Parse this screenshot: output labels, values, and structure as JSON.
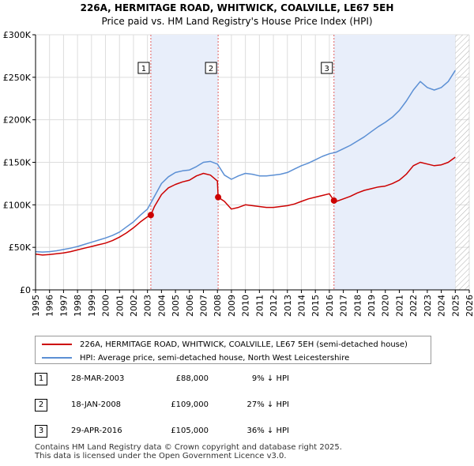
{
  "chart_data": {
    "type": "line",
    "title": "226A, HERMITAGE ROAD, WHITWICK, COALVILLE, LE67 5EH",
    "subtitle": "Price paid vs. HM Land Registry's House Price Index (HPI)",
    "xlabel": "",
    "ylabel": "",
    "xlim": [
      1995.0,
      2026.0
    ],
    "ylim": [
      0,
      300000
    ],
    "y_ticks": [
      0,
      50000,
      100000,
      150000,
      200000,
      250000,
      300000
    ],
    "y_tick_labels": [
      "£0",
      "£50K",
      "£100K",
      "£150K",
      "£200K",
      "£250K",
      "£300K"
    ],
    "x_ticks": [
      1995,
      1996,
      1997,
      1998,
      1999,
      2000,
      2001,
      2002,
      2003,
      2004,
      2005,
      2006,
      2007,
      2008,
      2009,
      2010,
      2011,
      2012,
      2013,
      2014,
      2015,
      2016,
      2017,
      2018,
      2019,
      2020,
      2021,
      2022,
      2023,
      2024,
      2025,
      2026
    ],
    "x_tick_labels": [
      "1995",
      "1996",
      "1997",
      "1998",
      "1999",
      "2000",
      "2001",
      "2002",
      "2003",
      "2004",
      "2005",
      "2006",
      "2007",
      "2008",
      "2009",
      "2010",
      "2011",
      "2012",
      "2013",
      "2014",
      "2015",
      "2016",
      "2017",
      "2018",
      "2019",
      "2020",
      "2021",
      "2022",
      "2023",
      "2024",
      "2025",
      "2026"
    ],
    "grid": true,
    "shaded_periods": [
      [
        2003.24,
        2008.05
      ],
      [
        2016.33,
        2025.0
      ]
    ],
    "hatched_after": 2025.0,
    "series": [
      {
        "name": "226A, HERMITAGE ROAD, WHITWICK, COALVILLE, LE67 5EH (semi-detached house)",
        "color": "#cc0000",
        "x": [
          1995.0,
          1995.5,
          1996.0,
          1996.5,
          1997.0,
          1997.5,
          1998.0,
          1998.5,
          1999.0,
          1999.5,
          2000.0,
          2000.5,
          2001.0,
          2001.5,
          2002.0,
          2002.5,
          2003.0,
          2003.24,
          2003.5,
          2004.0,
          2004.5,
          2005.0,
          2005.5,
          2006.0,
          2006.5,
          2007.0,
          2007.5,
          2008.0,
          2008.05,
          2008.5,
          2009.0,
          2009.5,
          2010.0,
          2010.5,
          2011.0,
          2011.5,
          2012.0,
          2012.5,
          2013.0,
          2013.5,
          2014.0,
          2014.5,
          2015.0,
          2015.5,
          2016.0,
          2016.33,
          2016.5,
          2017.0,
          2017.5,
          2018.0,
          2018.5,
          2019.0,
          2019.5,
          2020.0,
          2020.5,
          2021.0,
          2021.5,
          2022.0,
          2022.5,
          2023.0,
          2023.5,
          2024.0,
          2024.5,
          2025.0
        ],
        "values": [
          42000,
          41000,
          41500,
          42500,
          43500,
          45000,
          47000,
          49000,
          51000,
          53000,
          55000,
          58000,
          62000,
          67000,
          73000,
          80000,
          86000,
          88000,
          98000,
          112000,
          120000,
          124000,
          127000,
          129000,
          134000,
          137000,
          135000,
          128000,
          109000,
          104000,
          95000,
          97000,
          100000,
          99000,
          98000,
          97000,
          97000,
          98000,
          99000,
          101000,
          104000,
          107000,
          109000,
          111000,
          113000,
          105000,
          104000,
          107000,
          110000,
          114000,
          117000,
          119000,
          121000,
          122000,
          125000,
          129000,
          136000,
          146000,
          150000,
          148000,
          146000,
          147000,
          150000,
          156000
        ]
      },
      {
        "name": "HPI: Average price, semi-detached house, North West Leicestershire",
        "color": "#5b8fd4",
        "x": [
          1995.0,
          1995.5,
          1996.0,
          1996.5,
          1997.0,
          1997.5,
          1998.0,
          1998.5,
          1999.0,
          1999.5,
          2000.0,
          2000.5,
          2001.0,
          2001.5,
          2002.0,
          2002.5,
          2003.0,
          2003.5,
          2004.0,
          2004.5,
          2005.0,
          2005.5,
          2006.0,
          2006.5,
          2007.0,
          2007.5,
          2008.0,
          2008.5,
          2009.0,
          2009.5,
          2010.0,
          2010.5,
          2011.0,
          2011.5,
          2012.0,
          2012.5,
          2013.0,
          2013.5,
          2014.0,
          2014.5,
          2015.0,
          2015.5,
          2016.0,
          2016.5,
          2017.0,
          2017.5,
          2018.0,
          2018.5,
          2019.0,
          2019.5,
          2020.0,
          2020.5,
          2021.0,
          2021.5,
          2022.0,
          2022.5,
          2023.0,
          2023.5,
          2024.0,
          2024.5,
          2025.0
        ],
        "values": [
          45000,
          44500,
          45000,
          46000,
          47500,
          49000,
          51000,
          53500,
          56000,
          58500,
          61000,
          64000,
          68000,
          74000,
          80000,
          88000,
          95000,
          110000,
          125000,
          133000,
          138000,
          140000,
          141000,
          145000,
          150000,
          151000,
          148000,
          135000,
          130000,
          134000,
          137000,
          136000,
          134000,
          134000,
          135000,
          136000,
          138000,
          142000,
          146000,
          149000,
          153000,
          157000,
          160000,
          162000,
          166000,
          170000,
          175000,
          180000,
          186000,
          192000,
          197000,
          203000,
          211000,
          222000,
          235000,
          245000,
          238000,
          235000,
          238000,
          245000,
          258000
        ]
      }
    ],
    "annotations": [
      {
        "label": "1",
        "x": 2003.24,
        "sale_value": 88000
      },
      {
        "label": "2",
        "x": 2008.05,
        "sale_value": 109000
      },
      {
        "label": "3",
        "x": 2016.33,
        "sale_value": 105000
      }
    ]
  },
  "legend": {
    "property_label": "226A, HERMITAGE ROAD, WHITWICK, COALVILLE, LE67 5EH (semi-detached house)",
    "hpi_label": "HPI: Average price, semi-detached house, North West Leicestershire"
  },
  "sales": [
    {
      "num": "1",
      "date": "28-MAR-2003",
      "price": "£88,000",
      "hpi": "9% ↓ HPI"
    },
    {
      "num": "2",
      "date": "18-JAN-2008",
      "price": "£109,000",
      "hpi": "27% ↓ HPI"
    },
    {
      "num": "3",
      "date": "29-APR-2016",
      "price": "£105,000",
      "hpi": "36% ↓ HPI"
    }
  ],
  "footer": {
    "line1": "Contains HM Land Registry data © Crown copyright and database right 2025.",
    "line2": "This data is licensed under the Open Government Licence v3.0."
  }
}
